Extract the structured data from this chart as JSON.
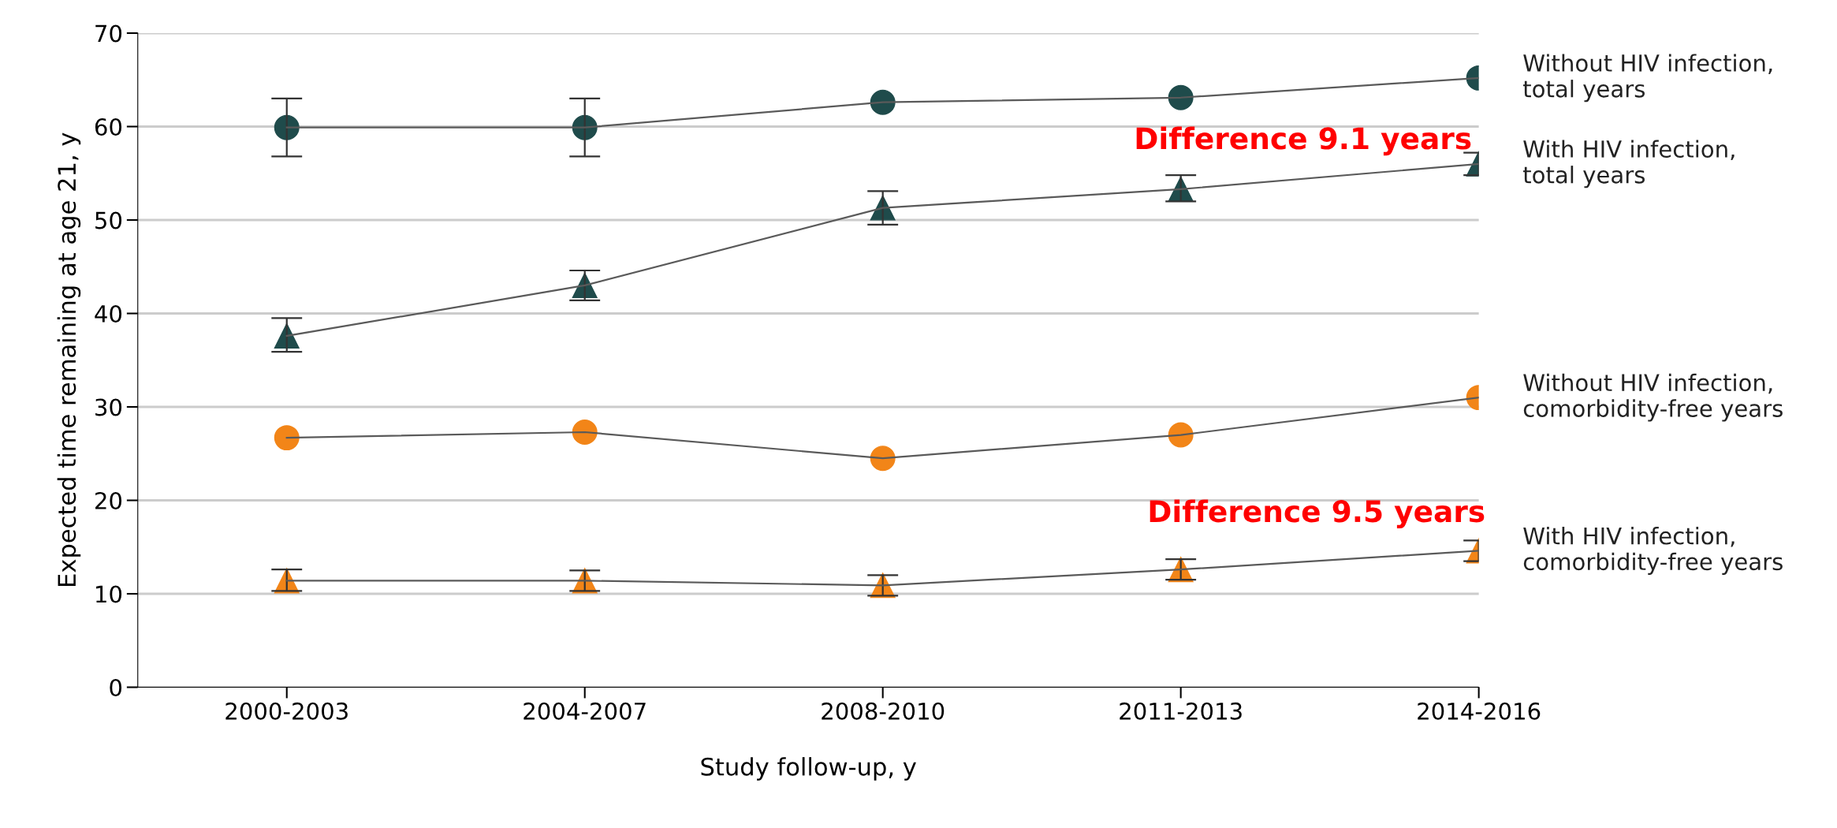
{
  "chart_data": {
    "type": "line",
    "ylabel": "Expected time remaining at age 21, y",
    "xlabel": "Study follow-up, y",
    "categories": [
      "2000-2003",
      "2004-2007",
      "2008-2010",
      "2011-2013",
      "2014-2016"
    ],
    "ylim": [
      0,
      70
    ],
    "yticks": [
      0,
      10,
      20,
      30,
      40,
      50,
      60,
      70
    ],
    "grid": "y",
    "legend": "right",
    "series": [
      {
        "name": "Without HIV infection,\ntotal years",
        "color": "#1f4b4b",
        "marker": "circle",
        "values": [
          59.9,
          59.9,
          62.6,
          63.1,
          65.2
        ],
        "errors": [
          [
            56.8,
            63.0
          ],
          [
            56.8,
            63.0
          ],
          null,
          null,
          null
        ]
      },
      {
        "name": "With HIV infection,\ntotal years",
        "color": "#1f4b4b",
        "marker": "triangle",
        "values": [
          37.6,
          43.0,
          51.3,
          53.3,
          56.0
        ],
        "errors": [
          [
            35.9,
            39.5
          ],
          [
            41.4,
            44.6
          ],
          [
            49.5,
            53.1
          ],
          [
            52.0,
            54.8
          ],
          [
            54.8,
            57.2
          ]
        ]
      },
      {
        "name": "Without HIV infection,\ncomorbidity-free years",
        "color": "#f28518",
        "marker": "circle",
        "values": [
          26.7,
          27.3,
          24.5,
          27.0,
          31.0
        ]
      },
      {
        "name": "With HIV infection,\ncomorbidity-free years",
        "color": "#f28518",
        "marker": "triangle",
        "values": [
          11.4,
          11.4,
          10.9,
          12.6,
          14.6
        ],
        "errors": [
          [
            10.3,
            12.6
          ],
          [
            10.3,
            12.5
          ],
          [
            9.8,
            12.0
          ],
          [
            11.5,
            13.7
          ],
          [
            13.5,
            15.7
          ]
        ]
      }
    ],
    "annotations": [
      "Difference 9.1 years",
      "Difference 9.5 years"
    ]
  }
}
